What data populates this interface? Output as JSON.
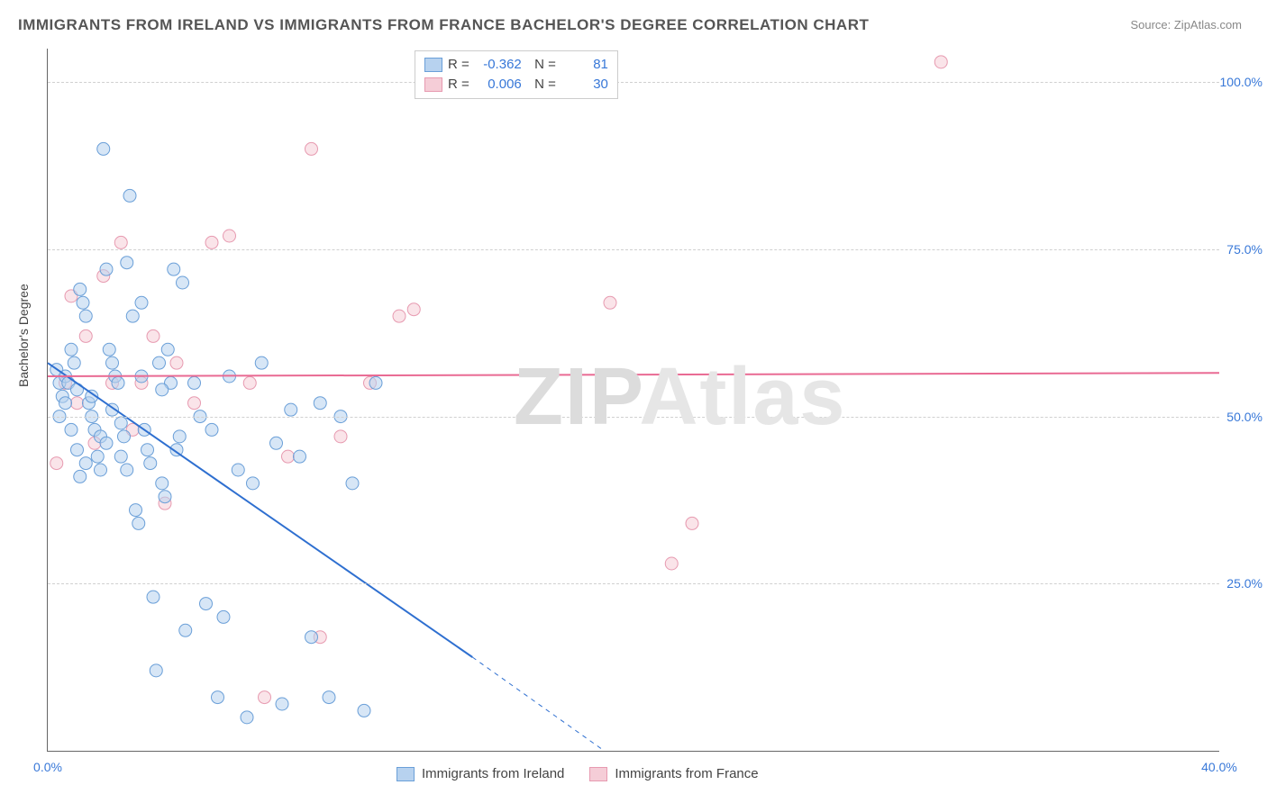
{
  "title": "IMMIGRANTS FROM IRELAND VS IMMIGRANTS FROM FRANCE BACHELOR'S DEGREE CORRELATION CHART",
  "source": "Source: ZipAtlas.com",
  "ylabel": "Bachelor's Degree",
  "watermark": "ZIPAtlas",
  "chart": {
    "type": "scatter",
    "background_color": "#ffffff",
    "grid_color": "#d0d0d0",
    "axis_color": "#666666",
    "tick_color": "#3878d8",
    "xlim": [
      0,
      40
    ],
    "ylim": [
      0,
      105
    ],
    "xticks": [
      0,
      40
    ],
    "xtick_labels": [
      "0.0%",
      "40.0%"
    ],
    "yticks": [
      25,
      50,
      75,
      100
    ],
    "ytick_labels": [
      "25.0%",
      "50.0%",
      "75.0%",
      "100.0%"
    ],
    "marker_radius": 7,
    "marker_opacity": 0.55,
    "line_width": 2
  },
  "series": [
    {
      "name": "Immigrants from Ireland",
      "fill": "#b7d2ef",
      "stroke": "#6a9fd8",
      "line_color": "#2e6fd0",
      "r_value": "-0.362",
      "n_value": "81",
      "trend": {
        "x1": 0,
        "y1": 58,
        "x2_solid": 14.5,
        "y2_solid": 14,
        "x2_dash": 19,
        "y2_dash": 0
      },
      "points": [
        [
          0.3,
          57
        ],
        [
          0.4,
          55
        ],
        [
          0.5,
          53
        ],
        [
          0.6,
          56
        ],
        [
          0.7,
          55
        ],
        [
          0.8,
          60
        ],
        [
          0.9,
          58
        ],
        [
          1.0,
          54
        ],
        [
          1.1,
          69
        ],
        [
          1.2,
          67
        ],
        [
          1.3,
          65
        ],
        [
          1.4,
          52
        ],
        [
          1.5,
          50
        ],
        [
          1.6,
          48
        ],
        [
          1.7,
          44
        ],
        [
          1.8,
          42
        ],
        [
          1.9,
          90
        ],
        [
          2.0,
          72
        ],
        [
          2.1,
          60
        ],
        [
          2.2,
          58
        ],
        [
          2.3,
          56
        ],
        [
          2.4,
          55
        ],
        [
          2.5,
          49
        ],
        [
          2.6,
          47
        ],
        [
          2.7,
          73
        ],
        [
          2.8,
          83
        ],
        [
          2.9,
          65
        ],
        [
          3.0,
          36
        ],
        [
          3.1,
          34
        ],
        [
          3.2,
          67
        ],
        [
          3.3,
          48
        ],
        [
          3.4,
          45
        ],
        [
          3.5,
          43
        ],
        [
          3.6,
          23
        ],
        [
          3.7,
          12
        ],
        [
          3.8,
          58
        ],
        [
          3.9,
          40
        ],
        [
          4.0,
          38
        ],
        [
          4.1,
          60
        ],
        [
          4.2,
          55
        ],
        [
          4.3,
          72
        ],
        [
          4.4,
          45
        ],
        [
          4.5,
          47
        ],
        [
          4.6,
          70
        ],
        [
          4.7,
          18
        ],
        [
          5.0,
          55
        ],
        [
          5.2,
          50
        ],
        [
          5.4,
          22
        ],
        [
          5.6,
          48
        ],
        [
          5.8,
          8
        ],
        [
          6.0,
          20
        ],
        [
          6.2,
          56
        ],
        [
          6.5,
          42
        ],
        [
          6.8,
          5
        ],
        [
          7.0,
          40
        ],
        [
          7.3,
          58
        ],
        [
          7.8,
          46
        ],
        [
          8.0,
          7
        ],
        [
          8.3,
          51
        ],
        [
          8.6,
          44
        ],
        [
          9.0,
          17
        ],
        [
          9.3,
          52
        ],
        [
          9.6,
          8
        ],
        [
          10.0,
          50
        ],
        [
          10.4,
          40
        ],
        [
          10.8,
          6
        ],
        [
          11.2,
          55
        ],
        [
          1.0,
          45
        ],
        [
          1.3,
          43
        ],
        [
          1.8,
          47
        ],
        [
          2.2,
          51
        ],
        [
          0.6,
          52
        ],
        [
          0.8,
          48
        ],
        [
          1.5,
          53
        ],
        [
          2.0,
          46
        ],
        [
          2.7,
          42
        ],
        [
          3.2,
          56
        ],
        [
          3.9,
          54
        ],
        [
          1.1,
          41
        ],
        [
          2.5,
          44
        ],
        [
          0.4,
          50
        ]
      ]
    },
    {
      "name": "Immigrants from France",
      "fill": "#f5cdd7",
      "stroke": "#e79ab0",
      "line_color": "#e96a93",
      "r_value": "0.006",
      "n_value": "30",
      "trend": {
        "x1": 0,
        "y1": 56,
        "x2_solid": 40,
        "y2_solid": 56.5,
        "x2_dash": 40,
        "y2_dash": 56.5
      },
      "points": [
        [
          0.3,
          43
        ],
        [
          0.6,
          55
        ],
        [
          0.8,
          68
        ],
        [
          1.0,
          52
        ],
        [
          1.3,
          62
        ],
        [
          1.6,
          46
        ],
        [
          1.9,
          71
        ],
        [
          2.2,
          55
        ],
        [
          2.5,
          76
        ],
        [
          2.9,
          48
        ],
        [
          3.2,
          55
        ],
        [
          3.6,
          62
        ],
        [
          4.0,
          37
        ],
        [
          4.4,
          58
        ],
        [
          5.0,
          52
        ],
        [
          5.6,
          76
        ],
        [
          6.2,
          77
        ],
        [
          6.9,
          55
        ],
        [
          7.4,
          8
        ],
        [
          8.2,
          44
        ],
        [
          9.0,
          90
        ],
        [
          9.3,
          17
        ],
        [
          10.0,
          47
        ],
        [
          11.0,
          55
        ],
        [
          12.0,
          65
        ],
        [
          12.5,
          66
        ],
        [
          19.2,
          67
        ],
        [
          21.3,
          28
        ],
        [
          22.0,
          34
        ],
        [
          30.5,
          103
        ]
      ]
    }
  ],
  "legend_bottom": [
    {
      "label": "Immigrants from Ireland"
    },
    {
      "label": "Immigrants from France"
    }
  ]
}
